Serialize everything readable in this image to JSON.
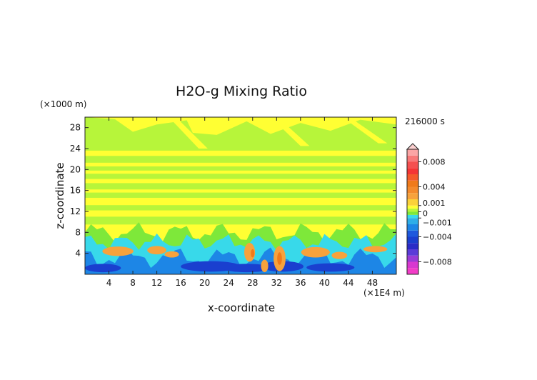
{
  "chart_data": {
    "type": "heatmap",
    "title": "H2O-g Mixing Ratio",
    "xlabel": "x-coordinate",
    "ylabel": "z-coordinate",
    "x_unit": "(×1E4 m)",
    "y_unit": "(×1000 m)",
    "time_label": "216000 s",
    "xlim": [
      0,
      52
    ],
    "ylim": [
      0,
      30
    ],
    "x_ticks": [
      4,
      8,
      12,
      16,
      20,
      24,
      28,
      32,
      36,
      40,
      44,
      48
    ],
    "y_ticks": [
      4,
      8,
      12,
      16,
      20,
      24,
      28
    ],
    "colorbar": {
      "labels": [
        "0.008",
        "0.004",
        "0.001",
        "0",
        "−0.001",
        "−0.004",
        "−0.008"
      ],
      "label_values": [
        0.008,
        0.004,
        0.001,
        0,
        -0.001,
        -0.004,
        -0.008
      ],
      "range": [
        -0.01,
        0.01
      ],
      "extend": "both"
    },
    "field_bands": [
      {
        "z_range": [
          0,
          2
        ],
        "level": "strong-negative"
      },
      {
        "z_range": [
          2,
          6
        ],
        "level": "mixed-negative-positive"
      },
      {
        "z_range": [
          6,
          8
        ],
        "level": "weak-negative"
      },
      {
        "z_range": [
          8,
          30
        ],
        "level": "near-zero"
      }
    ]
  },
  "colors": {
    "yellow": "#ffff33",
    "green_light": "#b7f53a",
    "green": "#7ee83a",
    "cyan": "#38d9ea",
    "blue": "#1d86e6",
    "dark_blue": "#1a3fcf",
    "orange": "#f7a23c",
    "orange_dark": "#f07a1a",
    "red": "#f53535",
    "pink": "#f87979",
    "magenta": "#f23cc7"
  }
}
